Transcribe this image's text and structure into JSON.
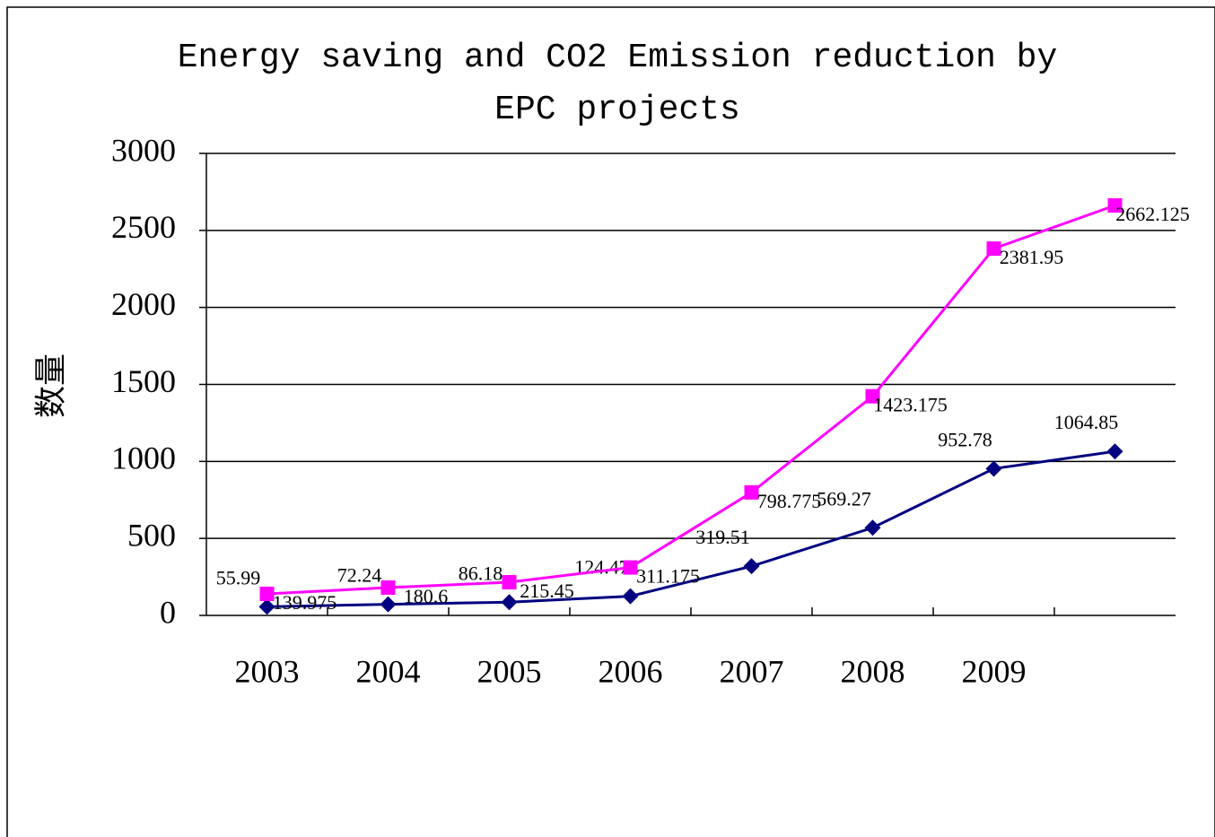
{
  "chart_data": {
    "type": "line",
    "title": "Energy saving and CO2 Emission reduction by EPC projects",
    "y_label": "数量",
    "categories": [
      "2003",
      "2004",
      "2005",
      "2006",
      "2007",
      "2008",
      "2009",
      null
    ],
    "series": [
      {
        "color": "#000080",
        "marker": "diamond",
        "values": [
          55.99,
          72.24,
          86.18,
          124.47,
          319.51,
          569.27,
          952.78,
          1064.85
        ]
      },
      {
        "color": "#ff00ff",
        "marker": "square",
        "values": [
          139.975,
          180.6,
          215.45,
          311.175,
          798.775,
          1423.175,
          2381.95,
          2662.125
        ]
      }
    ],
    "ylim": [
      0,
      3000
    ],
    "yticks": [
      0,
      500,
      1000,
      1500,
      2000,
      2500,
      3000
    ],
    "grid": true
  }
}
